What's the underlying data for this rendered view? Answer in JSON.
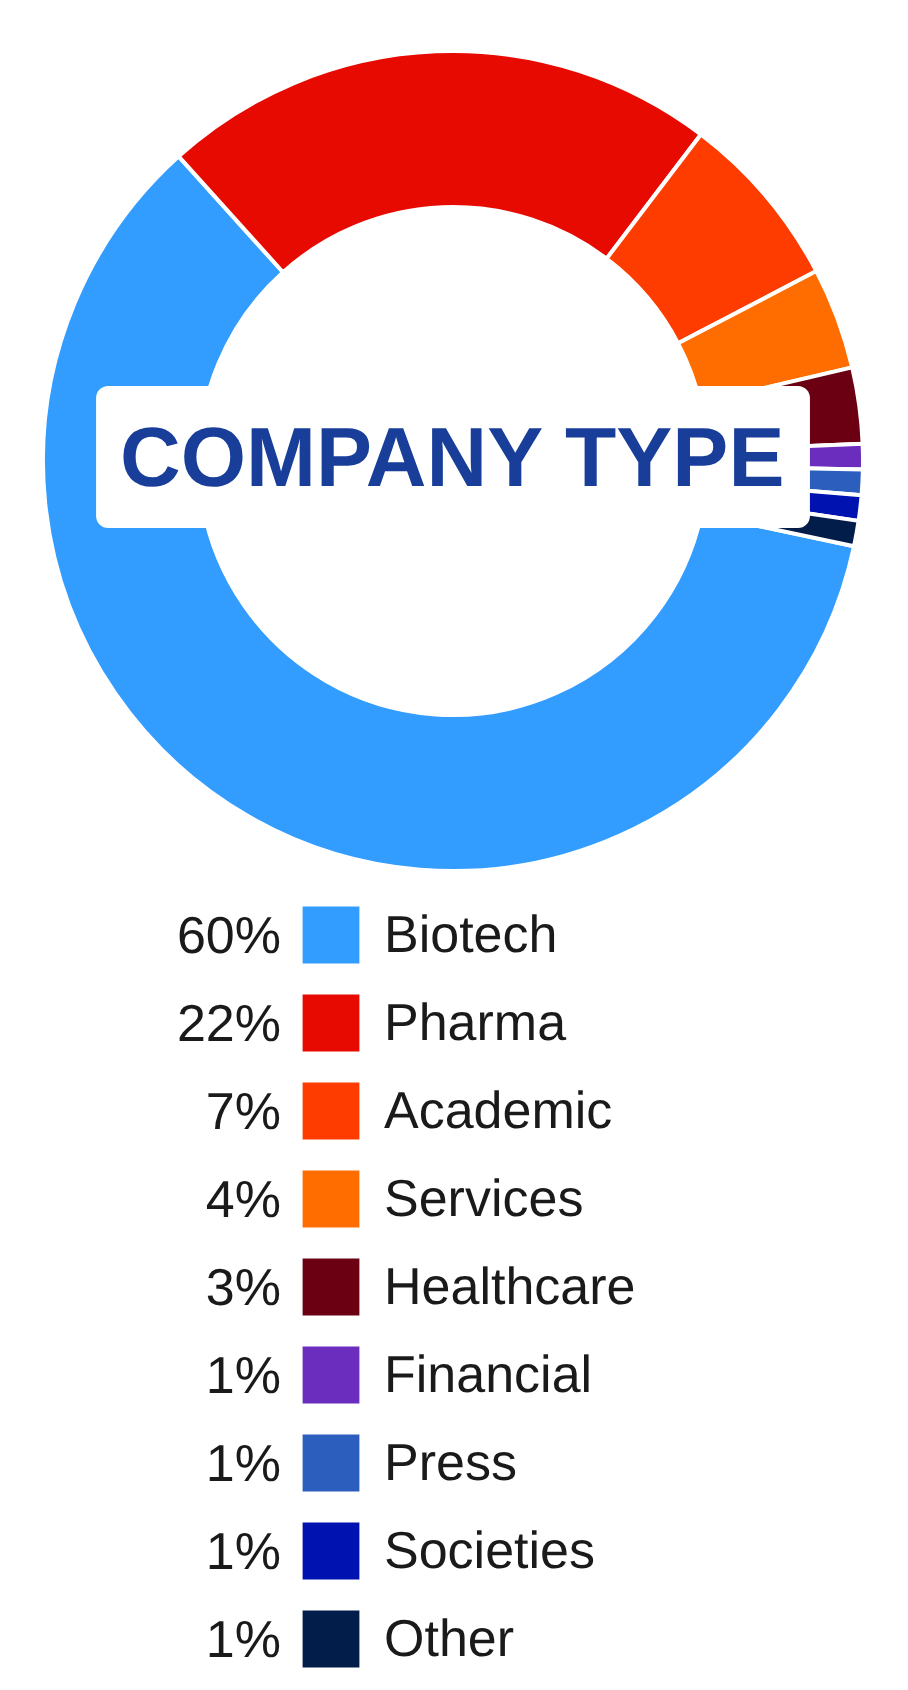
{
  "chart_data": {
    "type": "donut",
    "title": "COMPANY TYPE",
    "categories": [
      "Biotech",
      "Pharma",
      "Academic",
      "Services",
      "Healthcare",
      "Financial",
      "Press",
      "Societies",
      "Other"
    ],
    "values": [
      60,
      22,
      7,
      4,
      3,
      1,
      1,
      1,
      1
    ],
    "value_labels": [
      "60%",
      "22%",
      "7%",
      "4%",
      "3%",
      "1%",
      "1%",
      "1%",
      "1%"
    ],
    "colors": [
      "#339cff",
      "#e60a00",
      "#ff3c00",
      "#ff6c00",
      "#6b0012",
      "#6a2dbd",
      "#2c5fbd",
      "#0012b0",
      "#031d4a"
    ],
    "legend": "bottom"
  }
}
